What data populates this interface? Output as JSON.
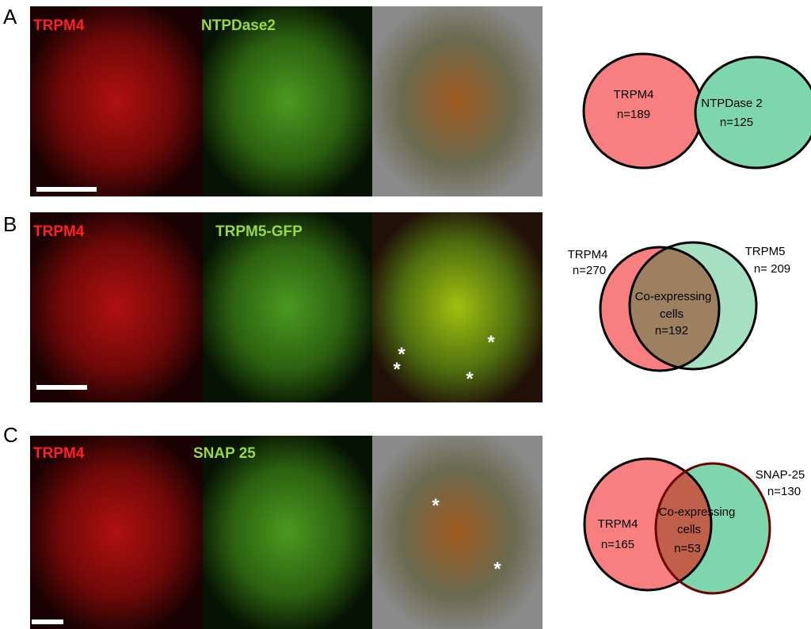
{
  "panels": [
    {
      "label": "A",
      "image_labels": [
        "TRPM4",
        "NTPDase2"
      ],
      "venn": {
        "left": [
          "TRPM4",
          "n=189"
        ],
        "right": [
          "NTPDase 2",
          "n=125"
        ]
      }
    },
    {
      "label": "B",
      "image_labels": [
        "TRPM4",
        "TRPM5-GFP"
      ],
      "asterisks": [
        "*",
        "*",
        "*",
        "*"
      ],
      "venn": {
        "left": [
          "TRPM4",
          "n=270"
        ],
        "right": [
          "TRPM5",
          "n= 209"
        ],
        "overlap": [
          "Co-expressing",
          "cells",
          "n=192"
        ]
      }
    },
    {
      "label": "C",
      "image_labels": [
        "TRPM4",
        "SNAP 25"
      ],
      "asterisks": [
        "*",
        "*"
      ],
      "venn": {
        "left": [
          "TRPM4",
          "n=165"
        ],
        "right": [
          "SNAP-25",
          "n=130"
        ],
        "overlap": [
          "Co-expressing",
          "cells",
          "n=53"
        ]
      }
    }
  ]
}
